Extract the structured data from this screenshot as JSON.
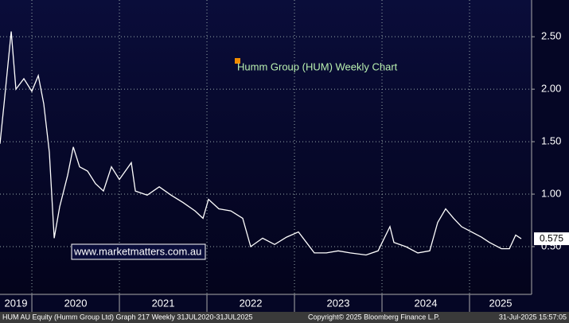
{
  "chart_data": {
    "type": "line",
    "title": "Humm Group (HUM) Weekly Chart",
    "watermark": "www.marketmatters.com.au",
    "x": [
      2019.636,
      2019.682,
      2019.764,
      2019.818,
      2019.909,
      2020.0,
      2020.073,
      2020.136,
      2020.2,
      2020.255,
      2020.318,
      2020.409,
      2020.473,
      2020.545,
      2020.636,
      2020.727,
      2020.818,
      2020.909,
      2021.0,
      2021.136,
      2021.182,
      2021.318,
      2021.455,
      2021.591,
      2021.727,
      2021.864,
      2021.955,
      2022.018,
      2022.136,
      2022.273,
      2022.409,
      2022.5,
      2022.636,
      2022.773,
      2022.909,
      2023.045,
      2023.136,
      2023.227,
      2023.364,
      2023.5,
      2023.636,
      2023.818,
      2023.955,
      2024.091,
      2024.136,
      2024.273,
      2024.409,
      2024.545,
      2024.636,
      2024.727,
      2024.818,
      2024.909,
      2025.0,
      2025.136,
      2025.227,
      2025.364,
      2025.455,
      2025.527,
      2025.591
    ],
    "series": [
      {
        "name": "HUM AU Equity",
        "color": "#ffffff",
        "values": [
          1.48,
          1.86,
          2.55,
          2.0,
          2.1,
          1.98,
          2.13,
          1.86,
          1.4,
          0.58,
          0.88,
          1.18,
          1.45,
          1.26,
          1.22,
          1.1,
          1.03,
          1.26,
          1.14,
          1.3,
          1.03,
          0.99,
          1.07,
          0.99,
          0.92,
          0.84,
          0.77,
          0.95,
          0.86,
          0.84,
          0.77,
          0.5,
          0.58,
          0.52,
          0.59,
          0.64,
          0.54,
          0.44,
          0.44,
          0.46,
          0.44,
          0.42,
          0.46,
          0.69,
          0.54,
          0.5,
          0.44,
          0.46,
          0.73,
          0.86,
          0.77,
          0.69,
          0.65,
          0.59,
          0.54,
          0.48,
          0.48,
          0.61,
          0.575
        ]
      }
    ],
    "xlim": [
      2019.636,
      2025.709
    ],
    "xticks": [
      2020,
      2021,
      2022,
      2023,
      2024,
      2025
    ],
    "year_labels": [
      {
        "value": 2019,
        "label": "2019"
      },
      {
        "value": 2020,
        "label": "2020"
      },
      {
        "value": 2021,
        "label": "2021"
      },
      {
        "value": 2022,
        "label": "2022"
      },
      {
        "value": 2023,
        "label": "2023"
      },
      {
        "value": 2024,
        "label": "2024"
      },
      {
        "value": 2025,
        "label": "2025"
      }
    ],
    "ylim": [
      0.045,
      2.85
    ],
    "yticks": [
      {
        "value": 0.5,
        "label": "0.50"
      },
      {
        "value": 1,
        "label": "1.00"
      },
      {
        "value": 1.5,
        "label": "1.50"
      },
      {
        "value": 2,
        "label": "2.00"
      },
      {
        "value": 2.5,
        "label": "2.50"
      }
    ],
    "grid": true
  },
  "footer": {
    "left": "HUM AU Equity (Humm Group Ltd) Graph 217  Weekly 31JUL2020-31JUL2025",
    "copyright": "Copyright© 2025 Bloomberg Finance L.P.",
    "timestamp": "31-Jul-2025 15:57:05"
  }
}
